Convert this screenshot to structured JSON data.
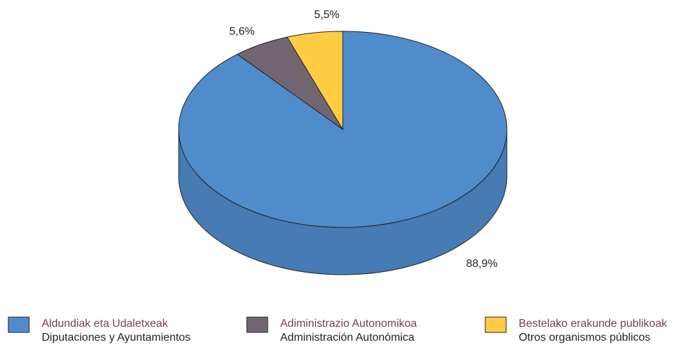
{
  "chart_data": {
    "type": "pie",
    "categories": [
      "Aldundiak eta Udaletxeak",
      "Adiministrazio Autonomikoa",
      "Bestelako erakunde publikoak"
    ],
    "categories_secondary": [
      "Diputaciones y Ayuntamientos",
      "Administración Autonómica",
      "Otros organismos públicos"
    ],
    "values": [
      88.9,
      5.6,
      5.5
    ],
    "value_labels": [
      "88,9%",
      "5,6%",
      "5,5%"
    ],
    "colors": [
      "#508ccc",
      "#736673",
      "#ffcc44"
    ],
    "legend": "bottom"
  }
}
